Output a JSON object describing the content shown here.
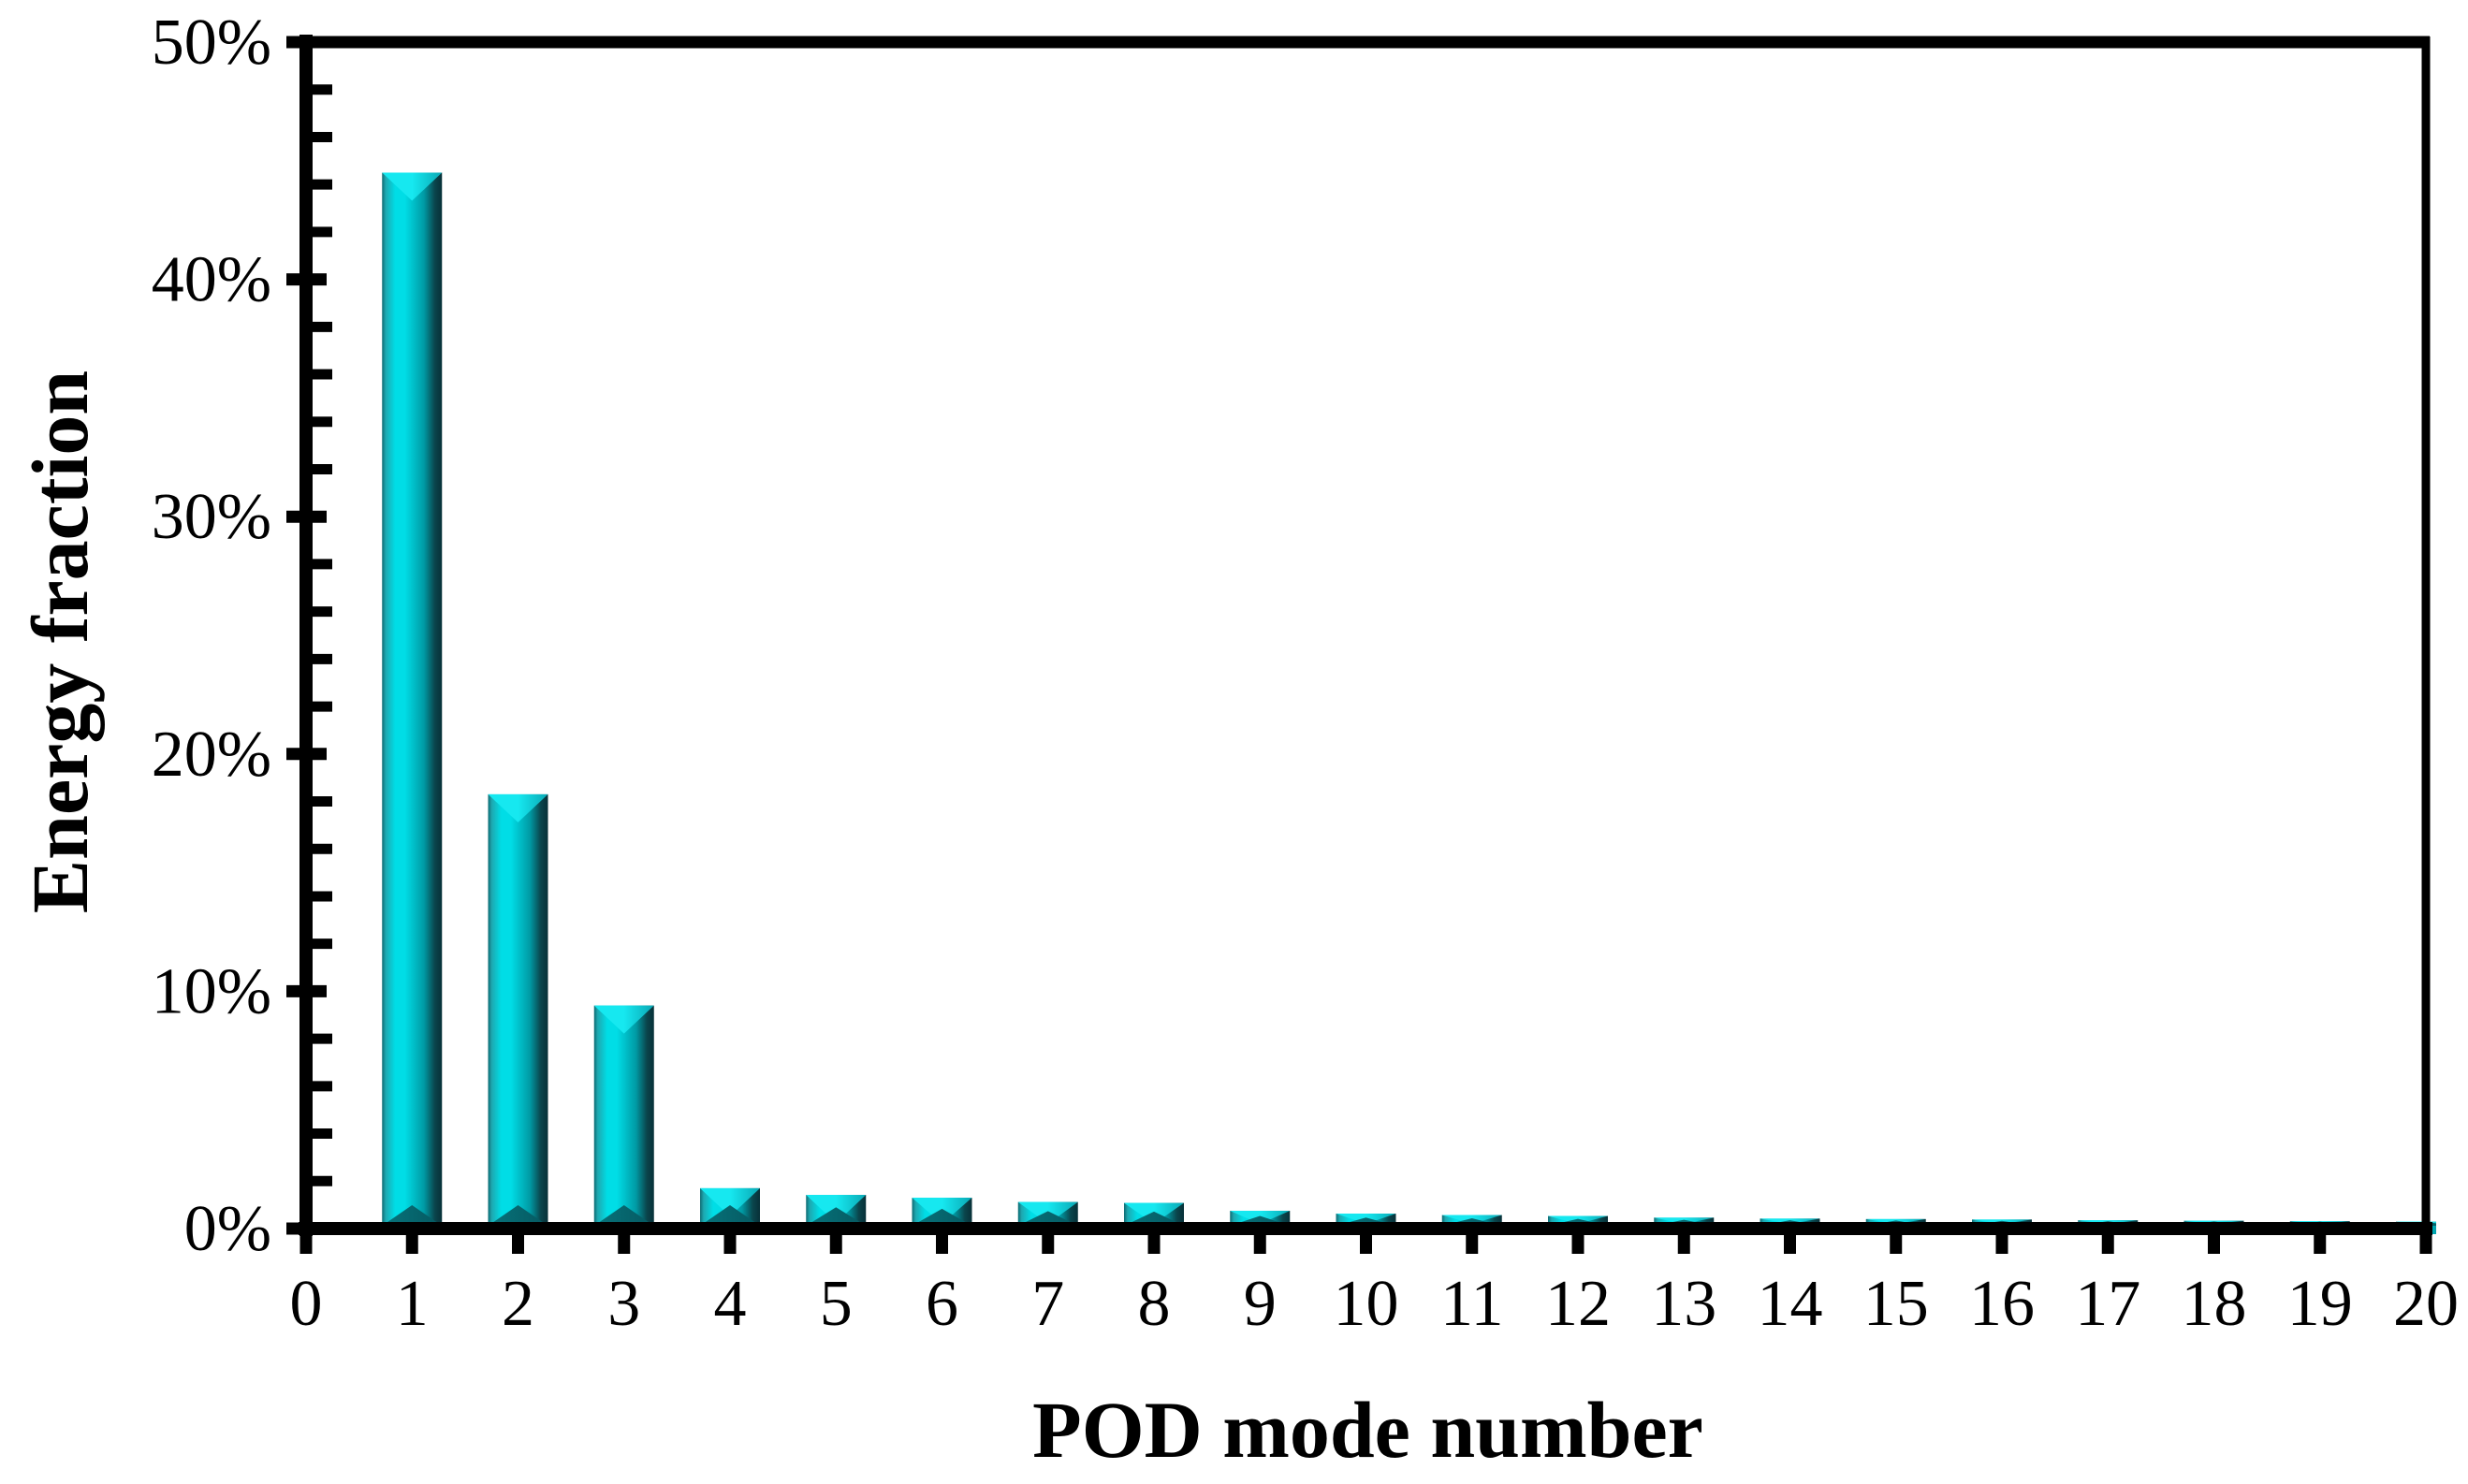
{
  "figure": {
    "background": "#ffffff"
  },
  "chart_data": {
    "type": "bar",
    "title": "",
    "xlabel": "POD mode number",
    "ylabel": "Energy fraction",
    "categories": [
      1,
      2,
      3,
      4,
      5,
      6,
      7,
      8,
      9,
      10,
      11,
      12,
      13,
      14,
      15,
      16,
      17,
      18,
      19,
      20
    ],
    "values_percent": [
      44.5,
      18.3,
      9.4,
      1.7,
      1.42,
      1.3,
      1.12,
      1.08,
      0.75,
      0.63,
      0.57,
      0.53,
      0.46,
      0.42,
      0.4,
      0.38,
      0.35,
      0.33,
      0.31,
      0.29
    ],
    "x_tick_labels": [
      "0",
      "1",
      "2",
      "3",
      "4",
      "5",
      "6",
      "7",
      "8",
      "9",
      "10",
      "11",
      "12",
      "13",
      "14",
      "15",
      "16",
      "17",
      "18",
      "19",
      "20"
    ],
    "y_tick_labels": [
      "0%",
      "10%",
      "20%",
      "30%",
      "40%",
      "50%"
    ],
    "xlim": [
      0,
      20
    ],
    "ylim_percent": [
      0,
      50
    ],
    "y_major_step_percent": 10,
    "y_minor_step_percent": 2,
    "grid": "off",
    "legend": "none",
    "bar_style": "3d-beveled-prism",
    "colors": {
      "axis": "#000000",
      "text": "#000000",
      "background": "#ffffff",
      "bar_left_dark": "#0f6a72",
      "bar_left_mid": "#1ea8b0",
      "bar_bright": "#00dde6",
      "bar_mid": "#00c0ca",
      "bar_shade": "#009aa4",
      "bar_right_dark": "#0a454c",
      "bar_edge_dark": "#083038",
      "bar_cap_bright": "#16e8f0",
      "bar_cap_edge": "#0aa8b4",
      "bar_base_shadow": "#07737b",
      "bar_base_shadow_dark": "#065860"
    }
  }
}
